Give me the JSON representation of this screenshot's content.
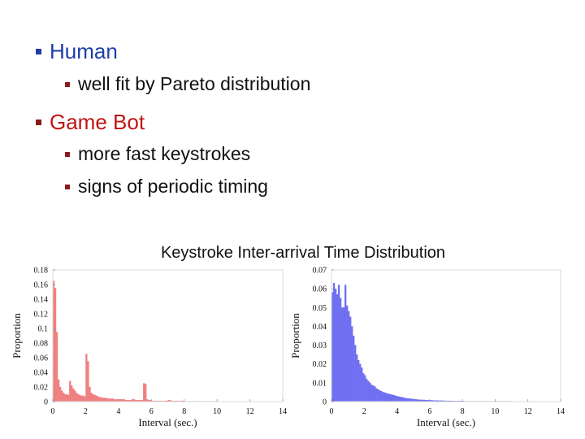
{
  "bullets": {
    "human": {
      "label": "Human",
      "color": "#1f3ea8",
      "sub": [
        "well fit by Pareto distribution"
      ]
    },
    "bot": {
      "label": "Game Bot",
      "color": "#c01414",
      "sub": [
        "more fast keystrokes",
        "signs of periodic timing"
      ]
    }
  },
  "figure_caption": "Keystroke Inter-arrival Time Distribution",
  "chart_data": [
    {
      "type": "bar",
      "xlabel": "Interval (sec.)",
      "ylabel": "Proportion",
      "xlim": [
        0,
        14
      ],
      "ylim": [
        0,
        0.18
      ],
      "xticks": [
        "0",
        "2",
        "4",
        "6",
        "8",
        "10",
        "12",
        "14"
      ],
      "yticks": [
        "0",
        "0.02",
        "0.04",
        "0.06",
        "0.08",
        "0.1",
        "0.12",
        "0.14",
        "0.16",
        "0.18"
      ],
      "color": "#f08080",
      "bin_width": 0.1,
      "values": [
        0.165,
        0.155,
        0.095,
        0.03,
        0.02,
        0.015,
        0.012,
        0.01,
        0.01,
        0.009,
        0.028,
        0.022,
        0.018,
        0.015,
        0.012,
        0.01,
        0.009,
        0.008,
        0.008,
        0.007,
        0.065,
        0.055,
        0.02,
        0.012,
        0.01,
        0.009,
        0.008,
        0.007,
        0.006,
        0.006,
        0.005,
        0.005,
        0.005,
        0.004,
        0.004,
        0.004,
        0.004,
        0.003,
        0.003,
        0.003,
        0.003,
        0.003,
        0.003,
        0.003,
        0.002,
        0.002,
        0.002,
        0.002,
        0.003,
        0.003,
        0.002,
        0.002,
        0.002,
        0.002,
        0.002,
        0.025,
        0.024,
        0.003,
        0.002,
        0.002,
        0.001,
        0.001,
        0.001,
        0.001,
        0.001,
        0.001,
        0.001,
        0.001,
        0.001,
        0.001,
        0.002,
        0.002,
        0.001,
        0.001,
        0.001,
        0.001,
        0.001,
        0.001,
        0.001,
        0.001,
        0.0005,
        0.0005,
        0.0005,
        0.0005,
        0.0005,
        0.0005,
        0.0005,
        0.0005,
        0.0005,
        0.0005,
        0.0005,
        0.0005,
        0.0005,
        0.0005,
        0.0005,
        0.0005,
        0.0005,
        0.0005,
        0.0005,
        0.0005
      ]
    },
    {
      "type": "bar",
      "xlabel": "Interval (sec.)",
      "ylabel": "Proportion",
      "xlim": [
        0,
        14
      ],
      "ylim": [
        0,
        0.07
      ],
      "xticks": [
        "0",
        "2",
        "4",
        "6",
        "8",
        "10",
        "12",
        "14"
      ],
      "yticks": [
        "0",
        "0.01",
        "0.02",
        "0.03",
        "0.04",
        "0.05",
        "0.06",
        "0.07"
      ],
      "color": "#6f6ff2",
      "bin_width": 0.1,
      "values": [
        0.058,
        0.063,
        0.06,
        0.057,
        0.062,
        0.055,
        0.05,
        0.05,
        0.062,
        0.051,
        0.048,
        0.045,
        0.04,
        0.035,
        0.03,
        0.025,
        0.022,
        0.02,
        0.018,
        0.015,
        0.014,
        0.012,
        0.011,
        0.01,
        0.009,
        0.0085,
        0.008,
        0.007,
        0.0065,
        0.006,
        0.0055,
        0.005,
        0.0048,
        0.0045,
        0.0042,
        0.004,
        0.0038,
        0.0035,
        0.0033,
        0.003,
        0.0028,
        0.0026,
        0.0024,
        0.0022,
        0.002,
        0.0018,
        0.0017,
        0.0016,
        0.0015,
        0.0014,
        0.0013,
        0.0012,
        0.0011,
        0.001,
        0.001,
        0.0009,
        0.0009,
        0.0008,
        0.0008,
        0.0007,
        0.0007,
        0.0007,
        0.0006,
        0.0006,
        0.0006,
        0.0005,
        0.0005,
        0.0005,
        0.0005,
        0.0004,
        0.0004,
        0.0004,
        0.0004,
        0.0004,
        0.0003,
        0.0003,
        0.0003,
        0.0003,
        0.0003,
        0.0003,
        0.0003,
        0.0002,
        0.0002,
        0.0002,
        0.0002,
        0.0002,
        0.0002,
        0.0002,
        0.0002,
        0.0002,
        0.0002,
        0.0002,
        0.0002,
        0.0002,
        0.0002,
        0.0002,
        0.0002,
        0.0002,
        0.0002,
        0.0002,
        0.0002,
        0.0002,
        0.0002,
        0.0002,
        0.0002,
        0.0002,
        0.0002,
        0.0002,
        0.0002,
        0.0002,
        0.0001,
        0.0001,
        0.0001,
        0.0001,
        0.0001,
        0.0001,
        0.0001,
        0.0001,
        0.0001,
        0.0001,
        0.0001,
        0.0001,
        0.0001,
        0.0001,
        0.0001,
        0.0001,
        0.0001,
        0.0001,
        0.0001,
        0.0001,
        0.0001,
        0.0001,
        0.0001,
        0.0001,
        0.0001,
        0.0001,
        0.0001,
        0.0001,
        0.0001,
        0.0001
      ]
    }
  ]
}
